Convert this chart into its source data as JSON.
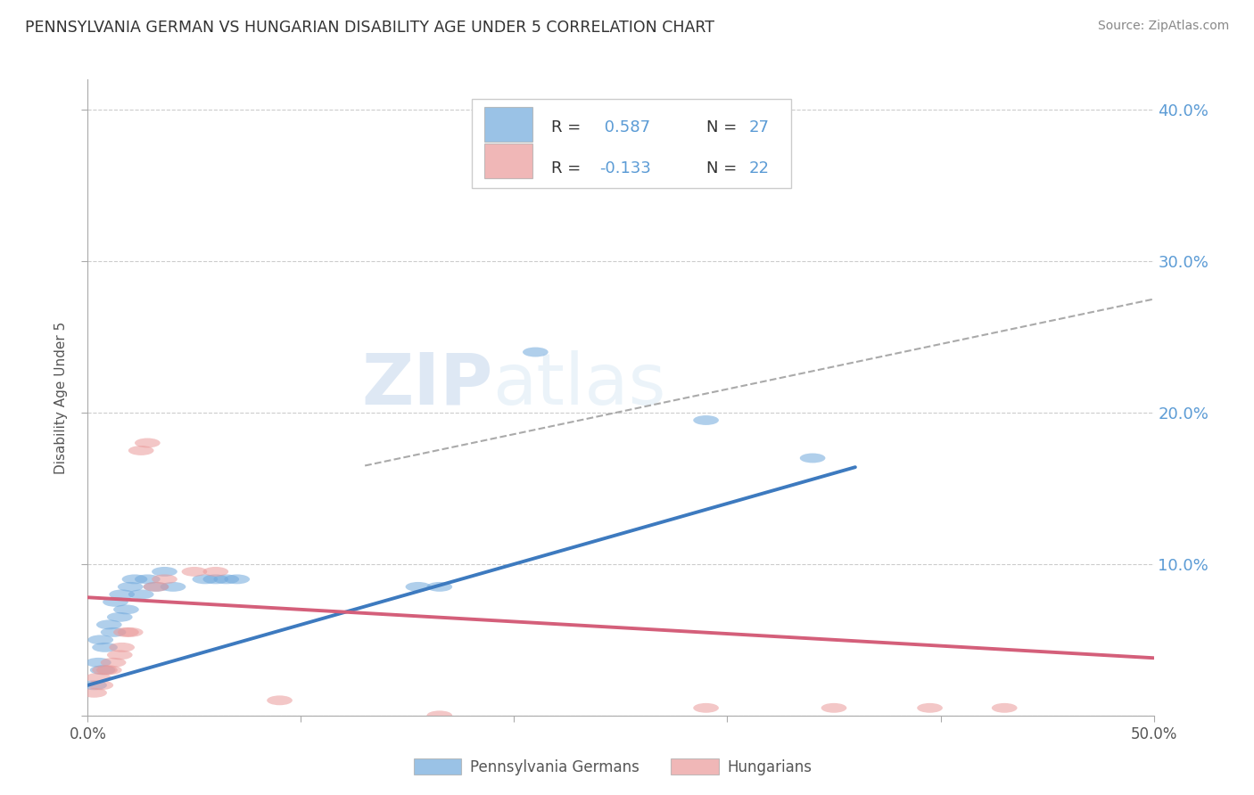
{
  "title": "PENNSYLVANIA GERMAN VS HUNGARIAN DISABILITY AGE UNDER 5 CORRELATION CHART",
  "source": "Source: ZipAtlas.com",
  "ylabel": "Disability Age Under 5",
  "xlim": [
    0.0,
    0.5
  ],
  "ylim": [
    0.0,
    0.42
  ],
  "yticks": [
    0.0,
    0.1,
    0.2,
    0.3,
    0.4
  ],
  "ytick_labels": [
    "",
    "10.0%",
    "20.0%",
    "30.0%",
    "40.0%"
  ],
  "xticks": [
    0.0,
    0.1,
    0.2,
    0.3,
    0.4,
    0.5
  ],
  "blue_color": "#6fa8dc",
  "pink_color": "#ea9999",
  "blue_line_color": "#3d7abf",
  "pink_line_color": "#d45f7a",
  "legend_r_color": "#555555",
  "legend_val_color": "#3d7abf",
  "legend_n_color": "#555555",
  "legend_n_val_color": "#3d7abf",
  "blue_r_text": "R =  0.587",
  "blue_n_text": "N = 27",
  "pink_r_text": "R = -0.133",
  "pink_n_text": "N = 22",
  "blue_scatter": [
    [
      0.003,
      0.02
    ],
    [
      0.005,
      0.035
    ],
    [
      0.006,
      0.05
    ],
    [
      0.007,
      0.03
    ],
    [
      0.008,
      0.045
    ],
    [
      0.01,
      0.06
    ],
    [
      0.012,
      0.055
    ],
    [
      0.013,
      0.075
    ],
    [
      0.015,
      0.065
    ],
    [
      0.016,
      0.08
    ],
    [
      0.018,
      0.07
    ],
    [
      0.02,
      0.085
    ],
    [
      0.022,
      0.09
    ],
    [
      0.025,
      0.08
    ],
    [
      0.028,
      0.09
    ],
    [
      0.032,
      0.085
    ],
    [
      0.036,
      0.095
    ],
    [
      0.04,
      0.085
    ],
    [
      0.055,
      0.09
    ],
    [
      0.06,
      0.09
    ],
    [
      0.065,
      0.09
    ],
    [
      0.07,
      0.09
    ],
    [
      0.155,
      0.085
    ],
    [
      0.165,
      0.085
    ],
    [
      0.21,
      0.24
    ],
    [
      0.29,
      0.195
    ],
    [
      0.34,
      0.17
    ]
  ],
  "pink_scatter": [
    [
      0.003,
      0.015
    ],
    [
      0.005,
      0.025
    ],
    [
      0.006,
      0.02
    ],
    [
      0.008,
      0.03
    ],
    [
      0.01,
      0.03
    ],
    [
      0.012,
      0.035
    ],
    [
      0.015,
      0.04
    ],
    [
      0.016,
      0.045
    ],
    [
      0.018,
      0.055
    ],
    [
      0.02,
      0.055
    ],
    [
      0.025,
      0.175
    ],
    [
      0.028,
      0.18
    ],
    [
      0.032,
      0.085
    ],
    [
      0.036,
      0.09
    ],
    [
      0.05,
      0.095
    ],
    [
      0.06,
      0.095
    ],
    [
      0.09,
      0.01
    ],
    [
      0.165,
      0.0
    ],
    [
      0.29,
      0.005
    ],
    [
      0.35,
      0.005
    ],
    [
      0.395,
      0.005
    ],
    [
      0.43,
      0.005
    ]
  ],
  "blue_line_x": [
    0.0,
    0.36
  ],
  "blue_line_y_intercept": 0.02,
  "blue_line_slope": 0.4,
  "pink_line_x": [
    0.0,
    0.5
  ],
  "pink_line_y_intercept": 0.078,
  "pink_line_slope": -0.08,
  "dash_line_x": [
    0.13,
    0.5
  ],
  "dash_line_y": [
    0.165,
    0.275
  ],
  "watermark_zip": "ZIP",
  "watermark_atlas": "atlas",
  "background_color": "#ffffff",
  "grid_color": "#cccccc",
  "right_axis_color": "#5b9bd5",
  "title_color": "#333333",
  "title_fontsize": 12.5
}
